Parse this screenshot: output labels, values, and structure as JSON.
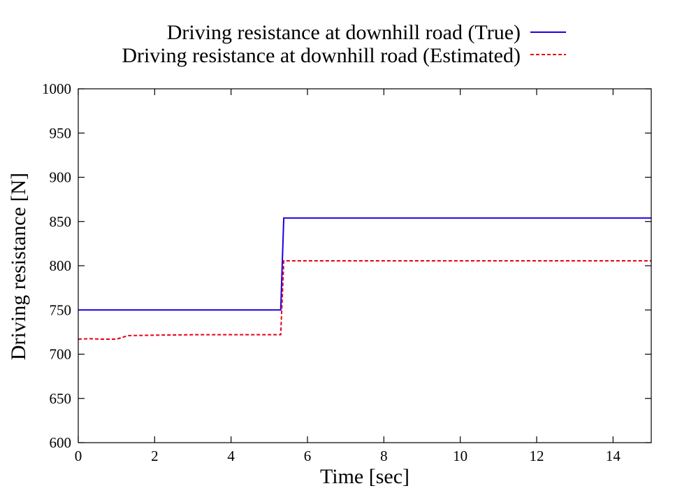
{
  "chart_data": {
    "type": "line",
    "title": "",
    "xlabel": "Time [sec]",
    "ylabel": "Driving resistance [N]",
    "xlim": [
      0,
      15
    ],
    "ylim": [
      600,
      1000
    ],
    "xticks": [
      0,
      2,
      4,
      6,
      8,
      10,
      12,
      14
    ],
    "yticks": [
      600,
      650,
      700,
      750,
      800,
      850,
      900,
      950,
      1000
    ],
    "grid": false,
    "legend_position": "top",
    "series": [
      {
        "name": "Driving resistance at downhill road (True)",
        "color": "#1a00e6",
        "style": "solid",
        "x": [
          0,
          5.3,
          5.38,
          15
        ],
        "y": [
          750,
          750,
          854,
          854
        ]
      },
      {
        "name": "Driving resistance at downhill road (Estimated)",
        "color": "#e6001a",
        "style": "dashed",
        "x": [
          0,
          0.3,
          0.6,
          1.0,
          1.3,
          2.0,
          3.0,
          4.0,
          5.0,
          5.3,
          5.38,
          6.0,
          8.0,
          10.0,
          12.0,
          15.0
        ],
        "y": [
          717,
          717.5,
          717,
          717,
          721,
          721.5,
          722,
          722,
          722,
          722,
          805.5,
          805.5,
          805.5,
          805.5,
          805.5,
          805.5
        ]
      }
    ]
  }
}
